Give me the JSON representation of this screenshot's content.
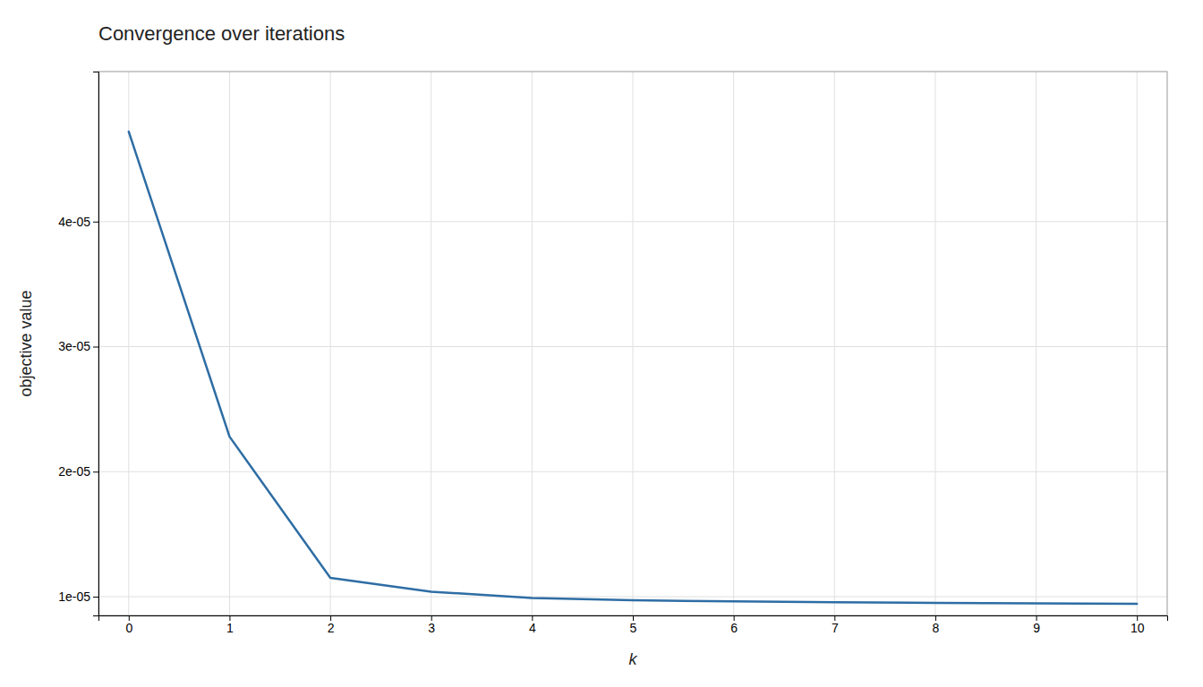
{
  "chart_data": {
    "type": "line",
    "title": "Convergence over iterations",
    "xlabel": "k",
    "ylabel": "objective value",
    "x": [
      0,
      1,
      2,
      3,
      4,
      5,
      6,
      7,
      8,
      9,
      10
    ],
    "y": [
      4.72e-05,
      2.28e-05,
      1.15e-05,
      1.04e-05,
      9.9e-06,
      9.72e-06,
      9.62e-06,
      9.55e-06,
      9.5e-06,
      9.46e-06,
      9.43e-06
    ],
    "color": "#2e6da4",
    "xlim": [
      -0.3,
      10.3
    ],
    "ylim": [
      8.5e-06,
      5.2e-05
    ],
    "xticks": [
      0,
      1,
      2,
      3,
      4,
      5,
      6,
      7,
      8,
      9,
      10
    ],
    "yticks": [
      {
        "value": 1e-05,
        "label": "1e-05"
      },
      {
        "value": 2e-05,
        "label": "2e-05"
      },
      {
        "value": 3e-05,
        "label": "3e-05"
      },
      {
        "value": 4e-05,
        "label": "4e-05"
      }
    ],
    "grid": true
  }
}
